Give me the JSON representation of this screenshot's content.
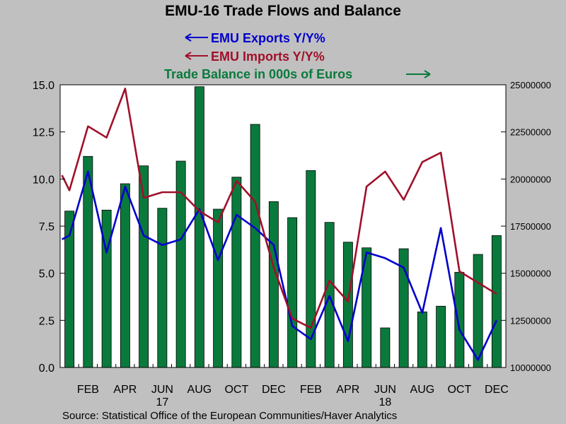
{
  "chart_data": {
    "type": "bar",
    "title": "EMU-16 Trade Flows and Balance",
    "legend": [
      {
        "label": "EMU Exports Y/Y%",
        "color": "#0000cc",
        "axis": "left"
      },
      {
        "label": "EMU Imports Y/Y%",
        "color": "#a0102a",
        "axis": "left"
      },
      {
        "label": "Trade Balance in 000s of Euros",
        "color": "#0a7a3c",
        "axis": "right"
      }
    ],
    "source": "Source:  Statistical Office of the European Communities/Haver Analytics",
    "x_tick_labels": [
      "FEB",
      "APR",
      "JUN",
      "AUG",
      "OCT",
      "DEC",
      "FEB",
      "APR",
      "JUN",
      "AUG",
      "OCT",
      "DEC"
    ],
    "x_tick_months": [
      1,
      3,
      5,
      7,
      9,
      11,
      13,
      15,
      17,
      19,
      21,
      23
    ],
    "year_labels": [
      {
        "label": "17",
        "month": 5
      },
      {
        "label": "18",
        "month": 17
      }
    ],
    "months": [
      "2017-01",
      "2017-02",
      "2017-03",
      "2017-04",
      "2017-05",
      "2017-06",
      "2017-07",
      "2017-08",
      "2017-09",
      "2017-10",
      "2017-11",
      "2017-12",
      "2018-01",
      "2018-02",
      "2018-03",
      "2018-04",
      "2018-05",
      "2018-06",
      "2018-07",
      "2018-08",
      "2018-09",
      "2018-10",
      "2018-11",
      "2018-12"
    ],
    "left_axis": {
      "ylim": [
        0,
        15
      ],
      "ticks": [
        "0.0",
        "2.5",
        "5.0",
        "7.5",
        "10.0",
        "12.5",
        "15.0"
      ]
    },
    "right_axis": {
      "ylim": [
        10000000,
        25000000
      ],
      "ticks": [
        "10000000",
        "12500000",
        "15000000",
        "17500000",
        "20000000",
        "22500000",
        "25000000"
      ]
    },
    "series": [
      {
        "name": "EMU Exports Y/Y%",
        "type": "line",
        "axis": "left",
        "color": "#0000cc",
        "values": [
          6.8,
          7.0,
          10.4,
          6.1,
          9.6,
          7.0,
          6.5,
          6.8,
          8.4,
          5.7,
          8.1,
          7.4,
          6.5,
          2.2,
          1.5,
          3.8,
          1.4,
          6.1,
          5.8,
          5.3,
          2.9,
          7.4,
          2.0,
          0.4,
          2.5
        ],
        "x_months": [
          -0.4,
          0,
          1,
          2,
          3,
          4,
          5,
          6,
          7,
          8,
          9,
          10,
          11,
          12,
          13,
          14,
          15,
          16,
          17,
          18,
          19,
          20,
          21,
          22,
          23
        ]
      },
      {
        "name": "EMU Imports Y/Y%",
        "type": "line",
        "axis": "left",
        "color": "#a0102a",
        "values": [
          10.2,
          9.4,
          12.8,
          12.2,
          14.8,
          9.0,
          9.3,
          9.3,
          8.3,
          7.7,
          9.9,
          8.8,
          5.3,
          2.6,
          2.1,
          4.6,
          3.5,
          9.6,
          10.4,
          8.9,
          10.9,
          11.4,
          5.1,
          4.5,
          3.9
        ],
        "x_months": [
          -0.4,
          0,
          1,
          2,
          3,
          4,
          5,
          6,
          7,
          8,
          9,
          10,
          11,
          12,
          13,
          14,
          15,
          16,
          17,
          18,
          19,
          20,
          21,
          22,
          23
        ]
      },
      {
        "name": "Trade Balance in 000s of Euros",
        "type": "bar",
        "axis": "right",
        "color": "#0a7a3c",
        "values": [
          18300000,
          21200000,
          18350000,
          19750000,
          20700000,
          18450000,
          20950000,
          24900000,
          18400000,
          20100000,
          22900000,
          18800000,
          17950000,
          20450000,
          17700000,
          16650000,
          16350000,
          12100000,
          16300000,
          12950000,
          13250000,
          15050000,
          16000000,
          17000000
        ]
      }
    ]
  }
}
